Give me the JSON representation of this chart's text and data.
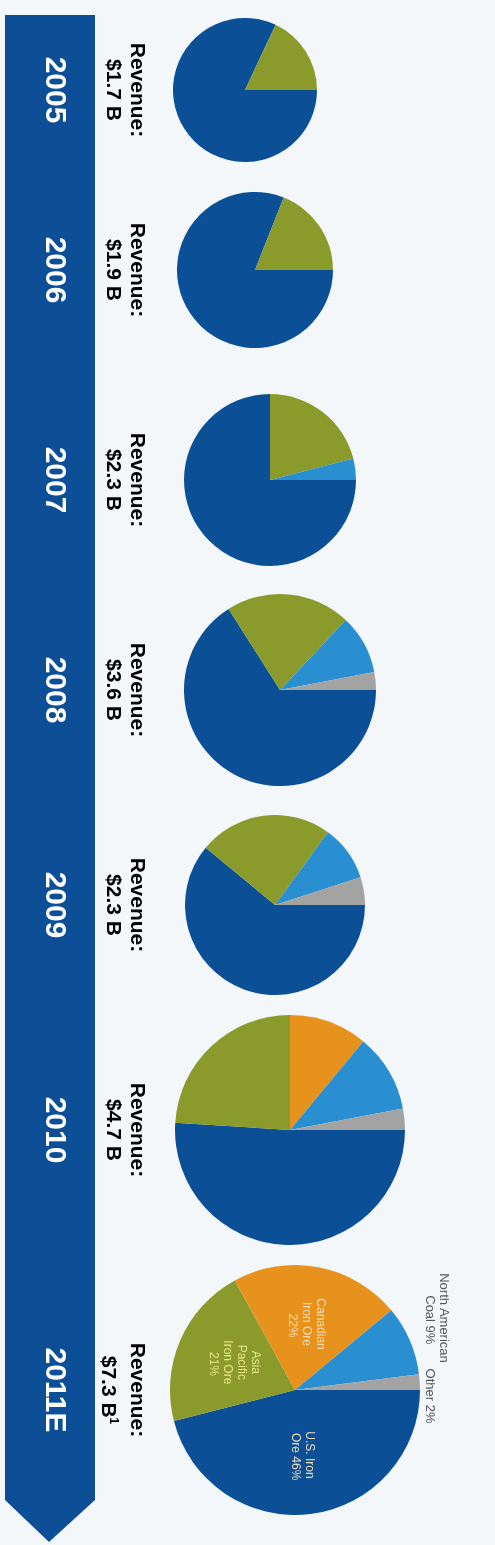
{
  "chart_data": [
    {
      "type": "pie",
      "title": "2005",
      "subtitle": "Revenue: $1.7 B",
      "categories": [
        null,
        null
      ],
      "values": [
        82,
        18
      ],
      "colors": [
        "#0b4f96",
        "#8a9a2b"
      ]
    },
    {
      "type": "pie",
      "title": "2006",
      "subtitle": "Revenue: $1.9 B",
      "categories": [
        null,
        null
      ],
      "values": [
        81,
        19
      ],
      "colors": [
        "#0b4f96",
        "#8a9a2b"
      ]
    },
    {
      "type": "pie",
      "title": "2007",
      "subtitle": "Revenue: $2.3 B",
      "categories": [
        null,
        null,
        null
      ],
      "values": [
        75,
        21,
        4
      ],
      "colors": [
        "#0b4f96",
        "#8a9a2b",
        "#2a8fd0"
      ]
    },
    {
      "type": "pie",
      "title": "2008",
      "subtitle": "Revenue: $3.6 B",
      "categories": [
        null,
        null,
        null,
        null
      ],
      "values": [
        66,
        21,
        10,
        3
      ],
      "colors": [
        "#0b4f96",
        "#8a9a2b",
        "#2a8fd0",
        "#a3a3a3"
      ]
    },
    {
      "type": "pie",
      "title": "2009",
      "subtitle": "Revenue: $2.3 B",
      "categories": [
        null,
        null,
        null,
        null
      ],
      "values": [
        61,
        24,
        10,
        5
      ],
      "colors": [
        "#0b4f96",
        "#8a9a2b",
        "#2a8fd0",
        "#a3a3a3"
      ]
    },
    {
      "type": "pie",
      "title": "2010",
      "subtitle": "Revenue: $4.7 B",
      "categories": [
        null,
        null,
        null,
        null,
        null
      ],
      "values": [
        51,
        24,
        11,
        11,
        3
      ],
      "colors": [
        "#0b4f96",
        "#8a9a2b",
        "#e8921e",
        "#2a8fd0",
        "#a3a3a3"
      ]
    },
    {
      "type": "pie",
      "title": "2011E",
      "subtitle": "Revenue: $7.3 B$^{1}$",
      "categories": [
        "U.S. Iron Ore",
        "Asia Pacific Iron Ore",
        "Canadian Iron Ore",
        "North American Coal",
        "Other"
      ],
      "values": [
        46,
        21,
        22,
        9,
        2
      ],
      "colors": [
        "#0b4f96",
        "#8a9a2b",
        "#e8921e",
        "#2a8fd0",
        "#a3a3a3"
      ],
      "value_labels": [
        "46%",
        "21%",
        "22%",
        "9%",
        "2%"
      ]
    }
  ]
}
